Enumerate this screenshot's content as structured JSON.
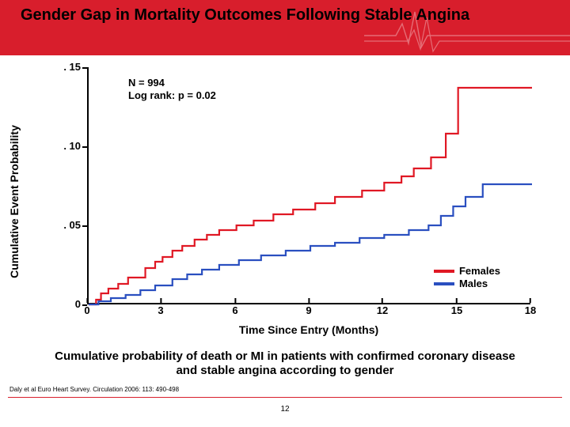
{
  "title": "Gender Gap in Mortality Outcomes Following Stable Angina",
  "header": {
    "band_color": "#d81e2c"
  },
  "chart": {
    "type": "step-line",
    "ylabel": "Cumulative Event Probability",
    "xlabel": "Time Since Entry (Months)",
    "ylim": [
      0,
      0.15
    ],
    "xlim": [
      0,
      18
    ],
    "ytick_labels": [
      ". 15",
      ". 10",
      ". 05",
      "0"
    ],
    "ytick_values": [
      0.15,
      0.1,
      0.05,
      0
    ],
    "xtick_labels": [
      "0",
      "3",
      "6",
      "9",
      "12",
      "15",
      "18"
    ],
    "xtick_values": [
      0,
      3,
      6,
      9,
      12,
      15,
      18
    ],
    "background_color": "#ffffff",
    "axis_color": "#000000",
    "line_width": 2.2,
    "annotation": {
      "n": "N = 994",
      "logrank": "Log rank: p = 0.02"
    },
    "series": [
      {
        "name": "Females",
        "color": "#e01824",
        "points": [
          [
            0,
            0
          ],
          [
            0.3,
            0.003
          ],
          [
            0.5,
            0.007
          ],
          [
            0.8,
            0.01
          ],
          [
            1.2,
            0.013
          ],
          [
            1.6,
            0.017
          ],
          [
            2.3,
            0.023
          ],
          [
            2.7,
            0.027
          ],
          [
            3.0,
            0.03
          ],
          [
            3.4,
            0.034
          ],
          [
            3.8,
            0.037
          ],
          [
            4.3,
            0.041
          ],
          [
            4.8,
            0.044
          ],
          [
            5.3,
            0.047
          ],
          [
            6.0,
            0.05
          ],
          [
            6.7,
            0.053
          ],
          [
            7.5,
            0.057
          ],
          [
            8.3,
            0.06
          ],
          [
            9.2,
            0.064
          ],
          [
            10.0,
            0.068
          ],
          [
            11.1,
            0.072
          ],
          [
            12.0,
            0.077
          ],
          [
            12.7,
            0.081
          ],
          [
            13.2,
            0.086
          ],
          [
            13.9,
            0.093
          ],
          [
            14.5,
            0.108
          ],
          [
            15.0,
            0.137
          ],
          [
            18.0,
            0.137
          ]
        ]
      },
      {
        "name": "Males",
        "color": "#2a4fc0",
        "points": [
          [
            0,
            0
          ],
          [
            0.4,
            0.002
          ],
          [
            0.9,
            0.004
          ],
          [
            1.5,
            0.006
          ],
          [
            2.1,
            0.009
          ],
          [
            2.7,
            0.012
          ],
          [
            3.4,
            0.016
          ],
          [
            4.0,
            0.019
          ],
          [
            4.6,
            0.022
          ],
          [
            5.3,
            0.025
          ],
          [
            6.1,
            0.028
          ],
          [
            7.0,
            0.031
          ],
          [
            8.0,
            0.034
          ],
          [
            9.0,
            0.037
          ],
          [
            10.0,
            0.039
          ],
          [
            11.0,
            0.042
          ],
          [
            12.0,
            0.044
          ],
          [
            13.0,
            0.047
          ],
          [
            13.8,
            0.05
          ],
          [
            14.3,
            0.056
          ],
          [
            14.8,
            0.062
          ],
          [
            15.3,
            0.068
          ],
          [
            16.0,
            0.076
          ],
          [
            18.0,
            0.076
          ]
        ]
      }
    ],
    "legend": {
      "items": [
        "Females",
        "Males"
      ],
      "position": "bottom-right"
    }
  },
  "subtitle": "Cumulative probability of death or MI in patients with confirmed coronary disease and stable angina according to gender",
  "citation": "Daly et al Euro Heart Survey. Circulation 2006: 113: 490-498",
  "page_number": "12"
}
